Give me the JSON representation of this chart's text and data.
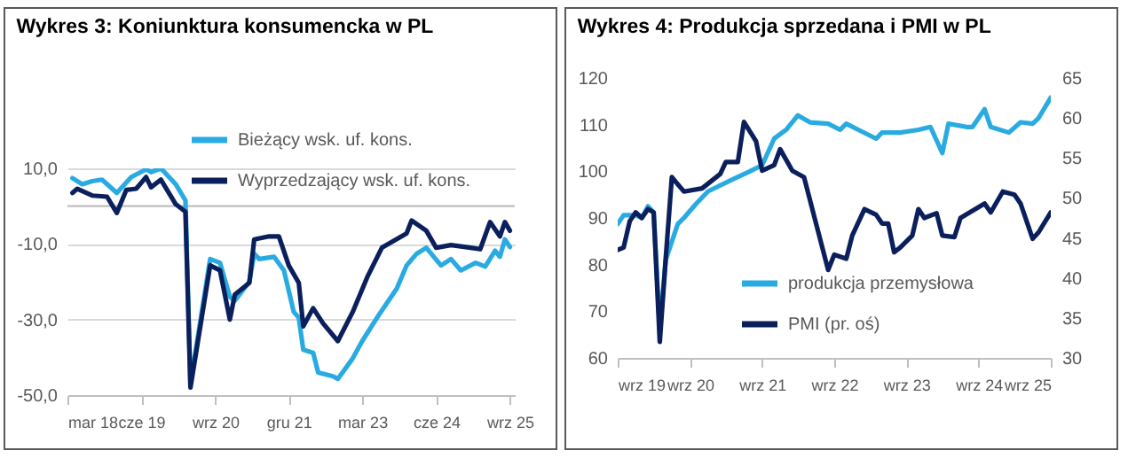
{
  "chart_data": [
    {
      "type": "line",
      "title": "Wykres 3:  Koniunktura konsumencka w PL",
      "xlim": [
        "2018-03",
        "2025-10"
      ],
      "ylim": [
        -50,
        10
      ],
      "xticks": [
        {
          "value": "2018-03",
          "label": "mar 18"
        },
        {
          "value": "2019-06",
          "label": "cze 19"
        },
        {
          "value": "2020-09",
          "label": "wrz 20"
        },
        {
          "value": "2021-12",
          "label": "gru 21"
        },
        {
          "value": "2023-03",
          "label": "mar 23"
        },
        {
          "value": "2024-06",
          "label": "cze 24"
        },
        {
          "value": "2025-09",
          "label": "wrz 25"
        }
      ],
      "yticks": [
        {
          "value": 10,
          "label": "10,0"
        },
        {
          "value": -10,
          "label": "-10,0"
        },
        {
          "value": -30,
          "label": "-30,0"
        },
        {
          "value": -50,
          "label": "-50,0"
        }
      ],
      "grid": "y",
      "legend": "top right",
      "ref_lines": [
        {
          "axis": "y",
          "value": 0,
          "color": "#bfbfbf"
        }
      ],
      "series": [
        {
          "name": "Bieżący wsk. uf. kons.",
          "color": "#29abe2",
          "x": [
            "2018-04",
            "2018-06",
            "2018-08",
            "2018-10",
            "2019-01",
            "2019-04",
            "2019-07",
            "2019-08",
            "2019-10",
            "2020-01",
            "2020-03",
            "2020-04",
            "2020-08",
            "2020-10",
            "2020-12",
            "2021-01",
            "2021-04",
            "2021-05",
            "2021-06",
            "2021-09",
            "2021-11",
            "2022-01",
            "2022-02",
            "2022-03",
            "2022-05",
            "2022-06",
            "2022-09",
            "2022-10",
            "2023-01",
            "2023-03",
            "2023-06",
            "2023-10",
            "2023-12",
            "2024-02",
            "2024-04",
            "2024-07",
            "2024-09",
            "2024-11",
            "2025-02",
            "2025-04",
            "2025-06",
            "2025-07",
            "2025-08",
            "2025-09"
          ],
          "values": [
            7.4,
            5.8,
            6.6,
            7,
            3.5,
            7.7,
            9.7,
            9,
            10,
            5.8,
            1.5,
            -47,
            -14,
            -15,
            -24,
            -25,
            -20,
            -12.6,
            -14,
            -13.4,
            -17,
            -28,
            -29.5,
            -38,
            -38.8,
            -44,
            -45,
            -45.7,
            -40.3,
            -35.7,
            -29.5,
            -21.8,
            -15.7,
            -12.6,
            -11,
            -15.7,
            -14,
            -17,
            -15,
            -16,
            -11.8,
            -13.4,
            -8.8,
            -10.8
          ]
        },
        {
          "name": "Wyprzedzający wsk. uf. kons.",
          "color": "#0a1f5c",
          "x": [
            "2018-04",
            "2018-05",
            "2018-08",
            "2018-11",
            "2019-01",
            "2019-03",
            "2019-05",
            "2019-07",
            "2019-08",
            "2019-10",
            "2020-01",
            "2020-03",
            "2020-04",
            "2020-08",
            "2020-10",
            "2020-12",
            "2021-01",
            "2021-04",
            "2021-05",
            "2021-08",
            "2021-10",
            "2021-12",
            "2022-02",
            "2022-03",
            "2022-05",
            "2022-07",
            "2022-10",
            "2023-01",
            "2023-04",
            "2023-07",
            "2023-12",
            "2024-01",
            "2024-04",
            "2024-06",
            "2024-09",
            "2025-01",
            "2025-03",
            "2025-05",
            "2025-07",
            "2025-08",
            "2025-09"
          ],
          "values": [
            3.5,
            4.6,
            2.8,
            2.5,
            -1.8,
            4.3,
            4.6,
            7.7,
            5,
            7,
            0.5,
            -1.5,
            -48,
            -15.7,
            -17,
            -30,
            -23.4,
            -20.3,
            -8.8,
            -8,
            -8,
            -15.7,
            -20.3,
            -31.8,
            -27,
            -31,
            -35.7,
            -28,
            -18.8,
            -11,
            -7.2,
            -3.8,
            -6.5,
            -11,
            -10.3,
            -11,
            -11.4,
            -4.2,
            -8,
            -4.2,
            -6.5
          ]
        }
      ]
    },
    {
      "type": "line",
      "title": "Wykres 4:  Produkcja sprzedana i PMI w PL",
      "xlim": [
        "2019-09",
        "2025-09"
      ],
      "ylim": [
        60,
        120
      ],
      "y2lim": [
        30,
        65
      ],
      "xticks": [
        {
          "value": "2019-09",
          "label": "wrz 19"
        },
        {
          "value": "2020-09",
          "label": "wrz 20"
        },
        {
          "value": "2021-09",
          "label": "wrz 21"
        },
        {
          "value": "2022-09",
          "label": "wrz 22"
        },
        {
          "value": "2023-09",
          "label": "wrz 23"
        },
        {
          "value": "2024-09",
          "label": "wrz 24"
        },
        {
          "value": "2025-09",
          "label": "wrz 25"
        }
      ],
      "yticks": [
        60,
        70,
        80,
        90,
        100,
        110,
        120
      ],
      "y2ticks": [
        30,
        35,
        40,
        45,
        50,
        55,
        60,
        65
      ],
      "legend": "bottom right",
      "series": [
        {
          "name": "produkcja przemysłowa",
          "color": "#29abe2",
          "x": [
            "2019-09",
            "2019-10",
            "2019-12",
            "2020-01",
            "2020-02",
            "2020-03",
            "2020-04",
            "2020-05",
            "2020-07",
            "2020-08",
            "2020-10",
            "2020-12",
            "2021-04",
            "2021-07",
            "2021-09",
            "2021-11",
            "2022-01",
            "2022-03",
            "2022-05",
            "2022-08",
            "2022-10",
            "2022-11",
            "2023-01",
            "2023-04",
            "2023-05",
            "2023-08",
            "2023-11",
            "2024-01",
            "2024-03",
            "2024-04",
            "2024-07",
            "2024-08",
            "2024-10",
            "2024-11",
            "2025-02",
            "2025-04",
            "2025-06",
            "2025-07",
            "2025-09"
          ],
          "values": [
            88.7,
            90.6,
            90.6,
            90,
            92.5,
            91.2,
            66,
            81,
            88.7,
            90,
            93,
            95.7,
            98.2,
            100,
            101.3,
            107,
            108.9,
            112,
            110.5,
            110.2,
            108.9,
            110.2,
            108.9,
            107,
            108.3,
            108.3,
            108.9,
            109.5,
            103.9,
            110.2,
            109.5,
            109.5,
            113.3,
            109.5,
            108.3,
            110.5,
            110.2,
            111.4,
            115.8
          ]
        },
        {
          "name": "PMI (pr. oś)",
          "color": "#0a1f5c",
          "axis": "y2",
          "x": [
            "2019-09",
            "2019-10",
            "2019-11",
            "2019-12",
            "2020-01",
            "2020-02",
            "2020-03",
            "2020-04",
            "2020-05",
            "2020-06",
            "2020-08",
            "2020-11",
            "2021-02",
            "2021-03",
            "2021-05",
            "2021-06",
            "2021-08",
            "2021-09",
            "2021-11",
            "2021-12",
            "2022-02",
            "2022-04",
            "2022-06",
            "2022-08",
            "2022-09",
            "2022-11",
            "2022-12",
            "2023-02",
            "2023-04",
            "2023-05",
            "2023-06",
            "2023-07",
            "2023-08",
            "2023-10",
            "2023-11",
            "2023-12",
            "2024-02",
            "2024-03",
            "2024-05",
            "2024-06",
            "2024-10",
            "2024-11",
            "2025-01",
            "2025-03",
            "2025-04",
            "2025-06",
            "2025-07",
            "2025-09"
          ],
          "values": [
            43.5,
            43.8,
            47.1,
            48.2,
            47.5,
            48.6,
            48.2,
            32,
            42.4,
            52.6,
            50.8,
            51.2,
            53,
            54.5,
            54.5,
            59.5,
            57.1,
            53.4,
            54.1,
            56.1,
            53.4,
            52.6,
            46.8,
            41,
            42.9,
            42.4,
            45.3,
            48.6,
            47.9,
            46.8,
            46.8,
            43.2,
            43.8,
            45.3,
            48.6,
            47.5,
            48.1,
            45.3,
            45.1,
            47.5,
            49.3,
            48.2,
            50.8,
            50.4,
            49.3,
            44.9,
            45.7,
            48.2
          ]
        }
      ]
    }
  ]
}
